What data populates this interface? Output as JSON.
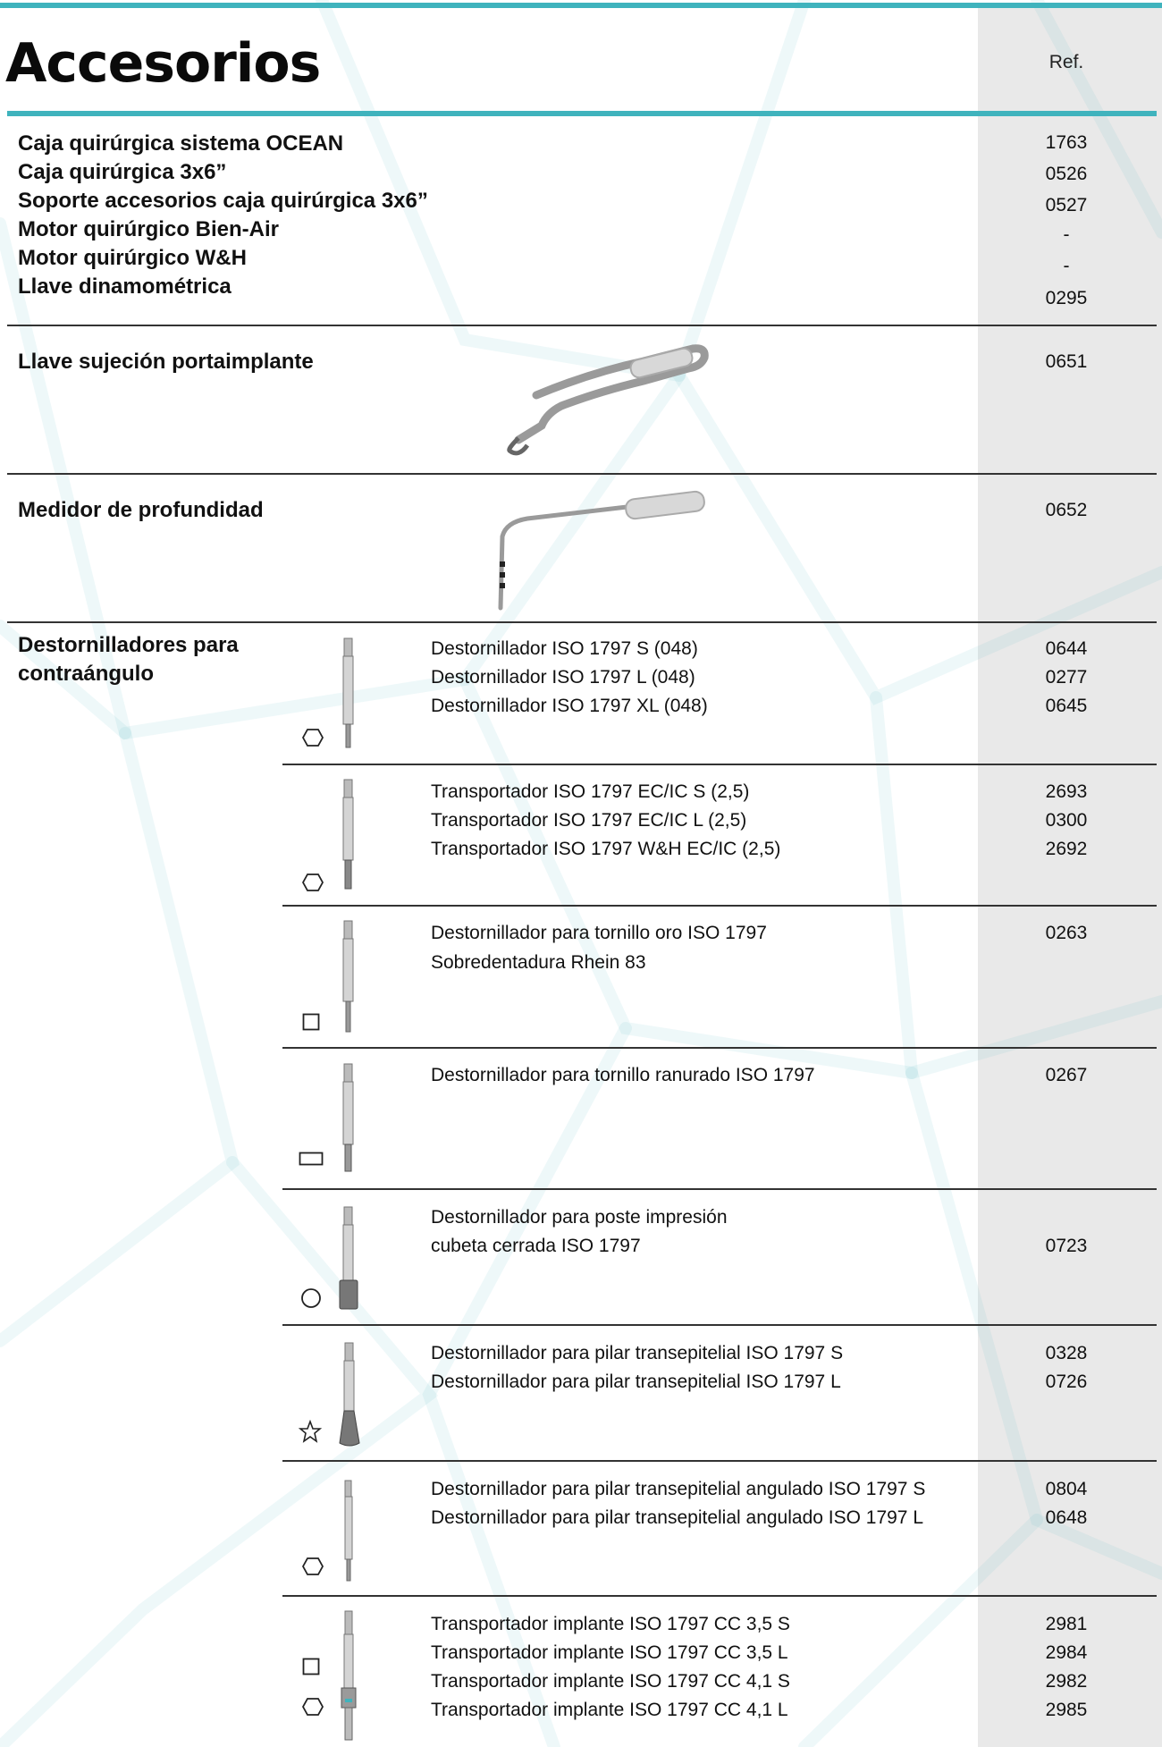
{
  "header": {
    "title": "Accesorios",
    "ref_label": "Ref."
  },
  "top_list": {
    "labels": [
      "Caja quirúrgica sistema OCEAN",
      "Caja quirúrgica 3x6”",
      "Soporte accesorios caja quirúrgica 3x6”",
      "Motor quirúrgico Bien-Air",
      "Motor quirúrgico W&H",
      "Llave dinamométrica"
    ],
    "refs": [
      "1763",
      "0526",
      "0527",
      "-",
      "-",
      "0295"
    ]
  },
  "llave_sujecion": {
    "label": "Llave sujeción portaimplante",
    "ref": "0651",
    "tool_icon": "wrench-icon"
  },
  "medidor": {
    "label": "Medidor de profundidad",
    "ref": "0652",
    "tool_icon": "depth-gauge-icon"
  },
  "destornilladores": {
    "label_line1": "Destornilladores para",
    "label_line2": "contraángulo",
    "groups": [
      {
        "shape": "hexagon",
        "items": [
          "Destornillador ISO 1797 S (048)",
          "Destornillador ISO 1797 L (048)",
          "Destornillador ISO 1797 XL (048)"
        ],
        "refs": [
          "0644",
          "0277",
          "0645"
        ]
      },
      {
        "shape": "hexagon",
        "items": [
          "Transportador ISO 1797 EC/IC S (2,5)",
          "Transportador ISO 1797 EC/IC L (2,5)",
          "Transportador ISO 1797 W&H EC/IC (2,5)"
        ],
        "refs": [
          "2693",
          "0300",
          "2692"
        ]
      },
      {
        "shape": "square",
        "items": [
          "Destornillador para tornillo oro ISO 1797",
          "Sobredentadura Rhein 83"
        ],
        "refs": [
          "0263"
        ]
      },
      {
        "shape": "slot",
        "items": [
          "Destornillador para tornillo ranurado ISO 1797"
        ],
        "refs": [
          "0267"
        ]
      },
      {
        "shape": "circle",
        "items": [
          "Destornillador para poste impresión",
          "cubeta cerrada ISO 1797"
        ],
        "refs": [
          "0723"
        ]
      },
      {
        "shape": "star",
        "items": [
          "Destornillador para pilar transepitelial ISO 1797 S",
          "Destornillador para pilar transepitelial ISO 1797 L"
        ],
        "refs": [
          "0328",
          "0726"
        ]
      },
      {
        "shape": "hexagon",
        "items": [
          "Destornillador para pilar transepitelial angulado ISO 1797 S",
          "Destornillador para pilar transepitelial angulado ISO 1797 L"
        ],
        "refs": [
          "0804",
          "0648"
        ]
      },
      {
        "shape": "square+hexagon",
        "items": [
          "Transportador implante ISO 1797 CC 3,5 S",
          "Transportador implante ISO 1797 CC 3,5 L",
          "Transportador implante ISO 1797 CC 4,1 S",
          "Transportador implante ISO 1797 CC 4,1 L"
        ],
        "refs": [
          "2981",
          "2984",
          "2982",
          "2985"
        ]
      }
    ]
  }
}
